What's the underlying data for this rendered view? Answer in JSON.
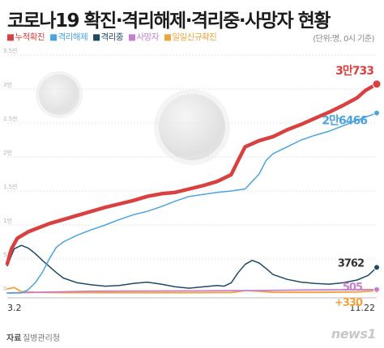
{
  "title": "코로나19 확진·격리해제·격리중·사망자 현황",
  "unit_note": "(단위:명, 0시 기준)",
  "source": {
    "label": "자료",
    "value": "질병관리청"
  },
  "brand": "news1",
  "colors": {
    "confirmed": "#d8413f",
    "released": "#4ba3e0",
    "isolated": "#1f4a66",
    "deaths": "#c57fcf",
    "daily": "#f2a33a",
    "grid": "#e6e6e6"
  },
  "chart_data": {
    "type": "line",
    "x_start_label": "3.2",
    "x_end_label": "11.22",
    "ylim": [
      0,
      35000
    ],
    "y_ticks": [
      {
        "value": 0,
        "label": "0"
      },
      {
        "value": 5000,
        "label": "5천"
      },
      {
        "value": 10000,
        "label": "1만"
      },
      {
        "value": 15000,
        "label": "1.5만"
      },
      {
        "value": 20000,
        "label": "2만"
      },
      {
        "value": 25000,
        "label": "2.5만"
      },
      {
        "value": 30000,
        "label": "3만"
      },
      {
        "value": 35000,
        "label": "3.5만"
      }
    ],
    "series": [
      {
        "key": "confirmed",
        "name": "누적확진",
        "end_label": "3만733",
        "points": [
          [
            0,
            4300
          ],
          [
            3,
            6500
          ],
          [
            7,
            8000
          ],
          [
            10,
            8400
          ],
          [
            15,
            9000
          ],
          [
            20,
            9400
          ],
          [
            25,
            9800
          ],
          [
            30,
            10200
          ],
          [
            40,
            10800
          ],
          [
            50,
            11400
          ],
          [
            60,
            12000
          ],
          [
            70,
            12600
          ],
          [
            80,
            13100
          ],
          [
            90,
            13600
          ],
          [
            100,
            14200
          ],
          [
            110,
            14600
          ],
          [
            120,
            14800
          ],
          [
            130,
            15300
          ],
          [
            140,
            15800
          ],
          [
            150,
            16400
          ],
          [
            160,
            17400
          ],
          [
            165,
            19500
          ],
          [
            170,
            21500
          ],
          [
            180,
            22400
          ],
          [
            190,
            23000
          ],
          [
            200,
            24000
          ],
          [
            210,
            24800
          ],
          [
            220,
            25700
          ],
          [
            230,
            26600
          ],
          [
            240,
            27600
          ],
          [
            250,
            28700
          ],
          [
            256,
            29800
          ],
          [
            264,
            30733
          ]
        ]
      },
      {
        "key": "released",
        "name": "격리해제",
        "end_label": "2만6466",
        "points": [
          [
            0,
            0
          ],
          [
            10,
            0
          ],
          [
            15,
            500
          ],
          [
            20,
            1500
          ],
          [
            25,
            3000
          ],
          [
            30,
            5000
          ],
          [
            35,
            6700
          ],
          [
            40,
            7500
          ],
          [
            50,
            8500
          ],
          [
            60,
            9300
          ],
          [
            70,
            10000
          ],
          [
            80,
            10800
          ],
          [
            90,
            11500
          ],
          [
            100,
            12000
          ],
          [
            110,
            12700
          ],
          [
            120,
            13500
          ],
          [
            130,
            14200
          ],
          [
            140,
            14500
          ],
          [
            150,
            14800
          ],
          [
            160,
            15000
          ],
          [
            170,
            15300
          ],
          [
            180,
            17500
          ],
          [
            185,
            19500
          ],
          [
            190,
            20500
          ],
          [
            200,
            21500
          ],
          [
            210,
            22500
          ],
          [
            220,
            23200
          ],
          [
            230,
            23800
          ],
          [
            240,
            24600
          ],
          [
            250,
            25400
          ],
          [
            264,
            26466
          ]
        ]
      },
      {
        "key": "isolated",
        "name": "격리중",
        "end_label": "3762",
        "points": [
          [
            0,
            4000
          ],
          [
            5,
            6500
          ],
          [
            10,
            7000
          ],
          [
            15,
            6600
          ],
          [
            20,
            5800
          ],
          [
            25,
            4800
          ],
          [
            30,
            3900
          ],
          [
            35,
            3000
          ],
          [
            40,
            2200
          ],
          [
            50,
            1500
          ],
          [
            60,
            1200
          ],
          [
            70,
            1000
          ],
          [
            80,
            1100
          ],
          [
            90,
            1400
          ],
          [
            100,
            1600
          ],
          [
            110,
            1300
          ],
          [
            120,
            900
          ],
          [
            130,
            700
          ],
          [
            140,
            900
          ],
          [
            150,
            1100
          ],
          [
            155,
            1000
          ],
          [
            160,
            1500
          ],
          [
            165,
            3000
          ],
          [
            170,
            4200
          ],
          [
            175,
            4800
          ],
          [
            180,
            4400
          ],
          [
            185,
            3600
          ],
          [
            190,
            2700
          ],
          [
            200,
            2000
          ],
          [
            210,
            1600
          ],
          [
            220,
            1400
          ],
          [
            230,
            1300
          ],
          [
            240,
            1500
          ],
          [
            250,
            1900
          ],
          [
            258,
            2600
          ],
          [
            264,
            3762
          ]
        ]
      },
      {
        "key": "deaths",
        "name": "사망자",
        "end_label": "505",
        "points": [
          [
            0,
            0
          ],
          [
            30,
            130
          ],
          [
            60,
            250
          ],
          [
            90,
            280
          ],
          [
            120,
            300
          ],
          [
            150,
            320
          ],
          [
            180,
            360
          ],
          [
            210,
            430
          ],
          [
            240,
            480
          ],
          [
            264,
            505
          ]
        ]
      },
      {
        "key": "daily",
        "name": "일일신규확진",
        "end_label": "+330",
        "points": [
          [
            0,
            600
          ],
          [
            5,
            800
          ],
          [
            10,
            200
          ],
          [
            20,
            100
          ],
          [
            40,
            50
          ],
          [
            80,
            40
          ],
          [
            120,
            40
          ],
          [
            160,
            60
          ],
          [
            170,
            350
          ],
          [
            180,
            250
          ],
          [
            190,
            100
          ],
          [
            220,
            90
          ],
          [
            250,
            150
          ],
          [
            264,
            330
          ]
        ]
      }
    ]
  }
}
